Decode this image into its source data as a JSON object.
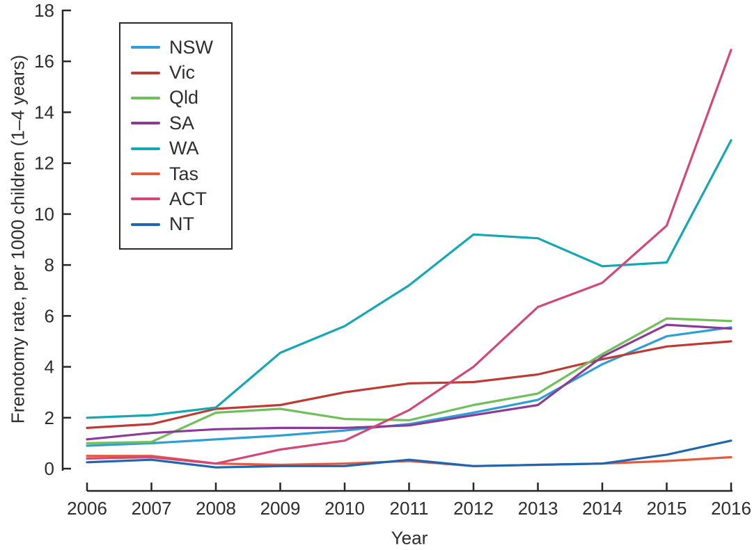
{
  "chart_data": {
    "type": "line",
    "title": "",
    "xlabel": "Year",
    "ylabel": "Frenotomy rate, per 1000 children (1–4 years)",
    "x": [
      2006,
      2007,
      2008,
      2009,
      2010,
      2011,
      2012,
      2013,
      2014,
      2015,
      2016
    ],
    "ylim": [
      0,
      18
    ],
    "y_ticks": [
      0,
      2,
      4,
      6,
      8,
      10,
      12,
      14,
      16,
      18
    ],
    "grid": false,
    "legend_position": "upper-left",
    "axis_color": "#262626",
    "text_color": "#2d2d2d",
    "series": [
      {
        "name": "NSW",
        "color": "#2D9FD6",
        "values": [
          0.9,
          1.0,
          1.15,
          1.3,
          1.5,
          1.75,
          2.2,
          2.7,
          4.1,
          5.2,
          5.55
        ]
      },
      {
        "name": "Vic",
        "color": "#BE3B33",
        "values": [
          1.6,
          1.75,
          2.35,
          2.5,
          3.0,
          3.35,
          3.4,
          3.7,
          4.3,
          4.8,
          5.0
        ]
      },
      {
        "name": "Qld",
        "color": "#6FC058",
        "values": [
          1.0,
          1.05,
          2.2,
          2.35,
          1.95,
          1.9,
          2.5,
          2.95,
          4.5,
          5.9,
          5.8
        ]
      },
      {
        "name": "SA",
        "color": "#8B3A97",
        "values": [
          1.15,
          1.4,
          1.55,
          1.6,
          1.6,
          1.7,
          2.1,
          2.5,
          4.4,
          5.65,
          5.5
        ]
      },
      {
        "name": "WA",
        "color": "#14A8B4",
        "values": [
          2.0,
          2.1,
          2.4,
          4.55,
          5.6,
          7.2,
          9.2,
          9.05,
          7.95,
          8.1,
          12.9
        ]
      },
      {
        "name": "Tas",
        "color": "#E6593B",
        "values": [
          0.5,
          0.5,
          0.2,
          0.15,
          0.2,
          0.3,
          0.1,
          0.15,
          0.2,
          0.3,
          0.45
        ]
      },
      {
        "name": "ACT",
        "color": "#D34874",
        "values": [
          0.4,
          0.45,
          0.2,
          0.75,
          1.1,
          2.3,
          4.0,
          6.35,
          7.3,
          9.55,
          16.45
        ]
      },
      {
        "name": "NT",
        "color": "#1E67B0",
        "values": [
          0.25,
          0.35,
          0.05,
          0.1,
          0.1,
          0.35,
          0.1,
          0.15,
          0.2,
          0.55,
          1.1
        ]
      }
    ]
  }
}
